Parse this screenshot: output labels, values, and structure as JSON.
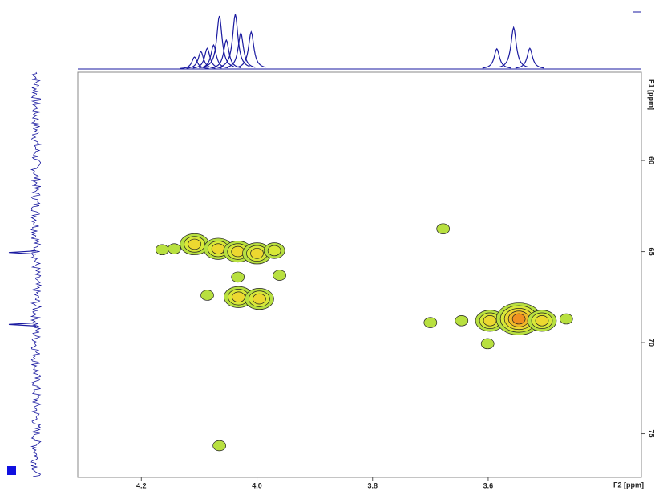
{
  "chart_data": {
    "type": "contour2d",
    "x_label": "F2 [ppm]",
    "y_label": "F1 [ppm]",
    "xlim": [
      4.31,
      3.335
    ],
    "ylim": [
      55.15,
      77.4
    ],
    "xticks": [
      4.2,
      {
        "value": 4,
        "label": "4.0"
      },
      3.8,
      3.6
    ],
    "yticks": [
      60,
      65,
      70,
      75
    ],
    "peaks": {
      "x": [
        4.164,
        4.143,
        4.108,
        4.067,
        4.033,
        4.0,
        3.97,
        3.961,
        4.032,
        3.996,
        4.033,
        4.086,
        3.7,
        3.646,
        3.597,
        3.547,
        3.507,
        3.465,
        3.601,
        3.678,
        4.065
      ],
      "y": [
        64.9,
        64.85,
        64.6,
        64.85,
        65.0,
        65.1,
        64.95,
        66.3,
        67.5,
        67.6,
        66.4,
        67.4,
        68.9,
        68.8,
        68.8,
        68.7,
        68.8,
        68.7,
        70.06,
        63.75,
        75.66
      ],
      "levels": [
        1,
        1,
        3,
        3,
        3,
        3,
        2,
        1,
        3,
        3,
        1,
        1,
        1,
        1,
        3,
        5,
        3,
        1,
        1,
        1,
        1
      ]
    },
    "f2_projection": {
      "color": "#1a1aa0",
      "x": [
        4.108,
        4.097,
        4.086,
        4.075,
        4.065,
        4.053,
        4.0375,
        4.028,
        4.01,
        3.585,
        3.556,
        3.528
      ],
      "values": [
        22,
        32,
        38,
        44,
        97,
        53,
        100,
        66,
        68,
        37,
        76,
        38
      ]
    },
    "f1_projection": {
      "color": "#1a1aa0",
      "x": [
        65.05,
        69.0
      ],
      "values": [
        100,
        100
      ]
    }
  }
}
